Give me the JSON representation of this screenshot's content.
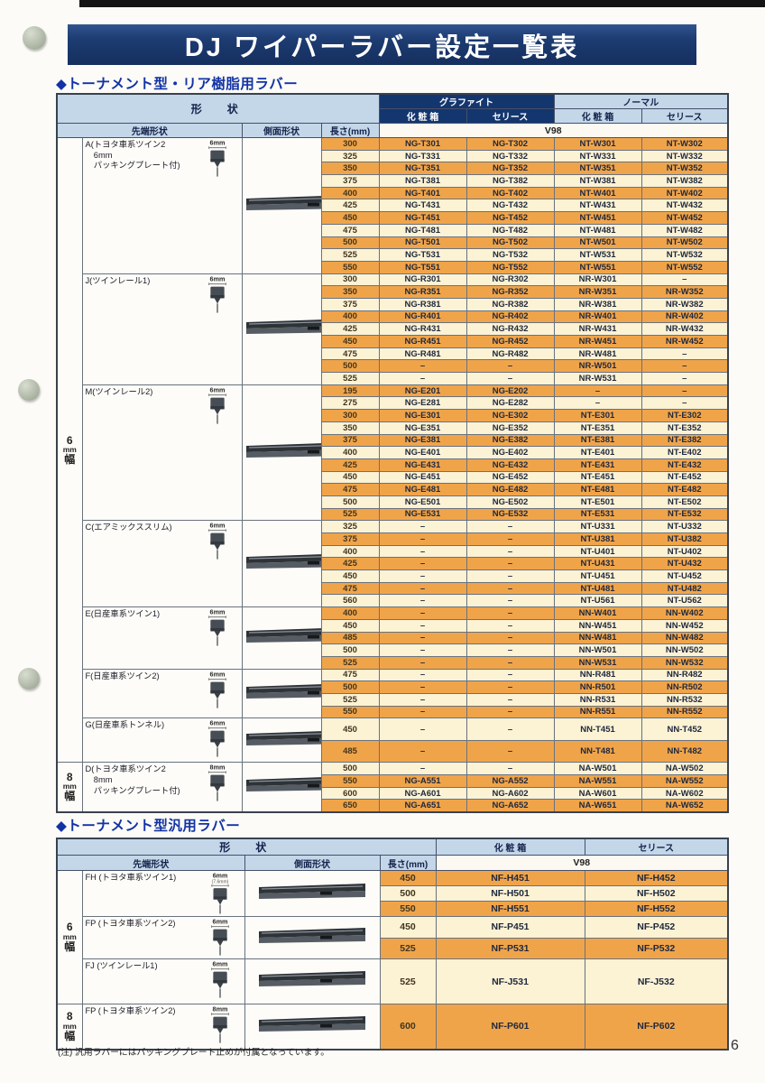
{
  "page": {
    "title": "DJ ワイパーラバー設定一覧表",
    "page_number": "6",
    "footnote": "(注) 汎用ラバーにはパッキングプレート止めが付属となっています。"
  },
  "colors": {
    "banner_navy": "#1d3c72",
    "header_light_blue": "#c3d7e9",
    "header_dark_navy": "#14366e",
    "row_orange": "#f0a44a",
    "row_cream": "#fcf2d4",
    "section_title_blue": "#1233a5"
  },
  "table1": {
    "section_title": "◆トーナメント型・リア樹脂用ラバー",
    "headers": {
      "shape": "形　状",
      "graphite": "グラファイト",
      "normal": "ノーマル",
      "box": "化 粧 箱",
      "series": "セリース",
      "tip": "先端形状",
      "side": "側面形状",
      "length": "長さ(mm)",
      "model": "V98"
    },
    "bands": [
      {
        "label_lines": [
          "6",
          "mm",
          "幅"
        ],
        "groups": [
          {
            "id": "A",
            "label_lines": [
              "A(トヨタ車系ツイン2",
              "　6mm",
              "　パッキングプレート付)"
            ],
            "icon_size": "6mm",
            "rows": [
              [
                "300",
                "NG-T301",
                "NG-T302",
                "NT-W301",
                "NT-W302"
              ],
              [
                "325",
                "NG-T331",
                "NG-T332",
                "NT-W331",
                "NT-W332"
              ],
              [
                "350",
                "NG-T351",
                "NG-T352",
                "NT-W351",
                "NT-W352"
              ],
              [
                "375",
                "NG-T381",
                "NG-T382",
                "NT-W381",
                "NT-W382"
              ],
              [
                "400",
                "NG-T401",
                "NG-T402",
                "NT-W401",
                "NT-W402"
              ],
              [
                "425",
                "NG-T431",
                "NG-T432",
                "NT-W431",
                "NT-W432"
              ],
              [
                "450",
                "NG-T451",
                "NG-T452",
                "NT-W451",
                "NT-W452"
              ],
              [
                "475",
                "NG-T481",
                "NG-T482",
                "NT-W481",
                "NT-W482"
              ],
              [
                "500",
                "NG-T501",
                "NG-T502",
                "NT-W501",
                "NT-W502"
              ],
              [
                "525",
                "NG-T531",
                "NG-T532",
                "NT-W531",
                "NT-W532"
              ],
              [
                "550",
                "NG-T551",
                "NG-T552",
                "NT-W551",
                "NT-W552"
              ]
            ]
          },
          {
            "id": "J",
            "label_lines": [
              "J(ツインレール1)"
            ],
            "icon_size": "6mm",
            "rows": [
              [
                "300",
                "NG-R301",
                "NG-R302",
                "NR-W301",
                "–"
              ],
              [
                "350",
                "NG-R351",
                "NG-R352",
                "NR-W351",
                "NR-W352"
              ],
              [
                "375",
                "NG-R381",
                "NG-R382",
                "NR-W381",
                "NR-W382"
              ],
              [
                "400",
                "NG-R401",
                "NG-R402",
                "NR-W401",
                "NR-W402"
              ],
              [
                "425",
                "NG-R431",
                "NG-R432",
                "NR-W431",
                "NR-W432"
              ],
              [
                "450",
                "NG-R451",
                "NG-R452",
                "NR-W451",
                "NR-W452"
              ],
              [
                "475",
                "NG-R481",
                "NG-R482",
                "NR-W481",
                "–"
              ],
              [
                "500",
                "–",
                "–",
                "NR-W501",
                "–"
              ],
              [
                "525",
                "–",
                "–",
                "NR-W531",
                "–"
              ]
            ]
          },
          {
            "id": "M",
            "label_lines": [
              "M(ツインレール2)"
            ],
            "icon_size": "6mm",
            "rows": [
              [
                "195",
                "NG-E201",
                "NG-E202",
                "–",
                "–"
              ],
              [
                "275",
                "NG-E281",
                "NG-E282",
                "–",
                "–"
              ],
              [
                "300",
                "NG-E301",
                "NG-E302",
                "NT-E301",
                "NT-E302"
              ],
              [
                "350",
                "NG-E351",
                "NG-E352",
                "NT-E351",
                "NT-E352"
              ],
              [
                "375",
                "NG-E381",
                "NG-E382",
                "NT-E381",
                "NT-E382"
              ],
              [
                "400",
                "NG-E401",
                "NG-E402",
                "NT-E401",
                "NT-E402"
              ],
              [
                "425",
                "NG-E431",
                "NG-E432",
                "NT-E431",
                "NT-E432"
              ],
              [
                "450",
                "NG-E451",
                "NG-E452",
                "NT-E451",
                "NT-E452"
              ],
              [
                "475",
                "NG-E481",
                "NG-E482",
                "NT-E481",
                "NT-E482"
              ],
              [
                "500",
                "NG-E501",
                "NG-E502",
                "NT-E501",
                "NT-E502"
              ],
              [
                "525",
                "NG-E531",
                "NG-E532",
                "NT-E531",
                "NT-E532"
              ]
            ]
          },
          {
            "id": "C",
            "label_lines": [
              "C(エアミックススリム)"
            ],
            "icon_size": "6mm",
            "rows": [
              [
                "325",
                "–",
                "–",
                "NT-U331",
                "NT-U332"
              ],
              [
                "375",
                "–",
                "–",
                "NT-U381",
                "NT-U382"
              ],
              [
                "400",
                "–",
                "–",
                "NT-U401",
                "NT-U402"
              ],
              [
                "425",
                "–",
                "–",
                "NT-U431",
                "NT-U432"
              ],
              [
                "450",
                "–",
                "–",
                "NT-U451",
                "NT-U452"
              ],
              [
                "475",
                "–",
                "–",
                "NT-U481",
                "NT-U482"
              ],
              [
                "560",
                "–",
                "–",
                "NT-U561",
                "NT-U562"
              ]
            ]
          },
          {
            "id": "E",
            "label_lines": [
              "E(日産車系ツイン1)"
            ],
            "icon_size": "6mm",
            "rows": [
              [
                "400",
                "–",
                "–",
                "NN-W401",
                "NN-W402"
              ],
              [
                "450",
                "–",
                "–",
                "NN-W451",
                "NN-W452"
              ],
              [
                "485",
                "–",
                "–",
                "NN-W481",
                "NN-W482"
              ],
              [
                "500",
                "–",
                "–",
                "NN-W501",
                "NN-W502"
              ],
              [
                "525",
                "–",
                "–",
                "NN-W531",
                "NN-W532"
              ]
            ]
          },
          {
            "id": "F",
            "label_lines": [
              "F(日産車系ツイン2)"
            ],
            "icon_size": "6mm",
            "rows": [
              [
                "475",
                "–",
                "–",
                "NN-R481",
                "NN-R482"
              ],
              [
                "500",
                "–",
                "–",
                "NN-R501",
                "NN-R502"
              ],
              [
                "525",
                "–",
                "–",
                "NN-R531",
                "NN-R532"
              ],
              [
                "550",
                "–",
                "–",
                "NN-R551",
                "NN-R552"
              ]
            ]
          },
          {
            "id": "G",
            "label_lines": [
              "G(日産車系トンネル)"
            ],
            "icon_size": "6mm",
            "rows": [
              [
                "450",
                "–",
                "–",
                "NN-T451",
                "NN-T452"
              ],
              [
                "485",
                "–",
                "–",
                "NN-T481",
                "NN-T482"
              ]
            ]
          }
        ]
      },
      {
        "label_lines": [
          "8",
          "mm",
          "幅"
        ],
        "groups": [
          {
            "id": "D",
            "label_lines": [
              "D(トヨタ車系ツイン2",
              "　8mm",
              "　パッキングプレート付)"
            ],
            "icon_size": "8mm",
            "rows": [
              [
                "500",
                "–",
                "–",
                "NA-W501",
                "NA-W502"
              ],
              [
                "550",
                "NG-A551",
                "NG-A552",
                "NA-W551",
                "NA-W552"
              ],
              [
                "600",
                "NG-A601",
                "NG-A602",
                "NA-W601",
                "NA-W602"
              ],
              [
                "650",
                "NG-A651",
                "NG-A652",
                "NA-W651",
                "NA-W652"
              ]
            ]
          }
        ]
      }
    ]
  },
  "table2": {
    "section_title": "◆トーナメント型汎用ラバー",
    "headers": {
      "shape": "形　状",
      "box": "化 粧 箱",
      "series": "セリース",
      "tip": "先端形状",
      "side": "側面形状",
      "length": "長さ(mm)",
      "model": "V98"
    },
    "bands": [
      {
        "label_lines": [
          "6",
          "mm",
          "幅"
        ],
        "groups": [
          {
            "id": "FH",
            "label_lines": [
              "FH (トヨタ車系ツイン1)"
            ],
            "icon_size": "6mm",
            "icon_size_sub": "(7.6mm)",
            "rows": [
              [
                "450",
                "NF-H451",
                "NF-H452"
              ],
              [
                "500",
                "NF-H501",
                "NF-H502"
              ],
              [
                "550",
                "NF-H551",
                "NF-H552"
              ]
            ]
          },
          {
            "id": "FP",
            "label_lines": [
              "FP (トヨタ車系ツイン2)"
            ],
            "icon_size": "6mm",
            "rows": [
              [
                "450",
                "NF-P451",
                "NF-P452"
              ],
              [
                "525",
                "NF-P531",
                "NF-P532"
              ]
            ]
          },
          {
            "id": "FJ",
            "label_lines": [
              "FJ (ツインレール1)"
            ],
            "icon_size": "6mm",
            "rows": [
              [
                "525",
                "NF-J531",
                "NF-J532"
              ]
            ]
          }
        ]
      },
      {
        "label_lines": [
          "8",
          "mm",
          "幅"
        ],
        "groups": [
          {
            "id": "FP8",
            "label_lines": [
              "FP (トヨタ車系ツイン2)"
            ],
            "icon_size": "8mm",
            "rows": [
              [
                "600",
                "NF-P601",
                "NF-P602"
              ]
            ]
          }
        ]
      }
    ]
  }
}
